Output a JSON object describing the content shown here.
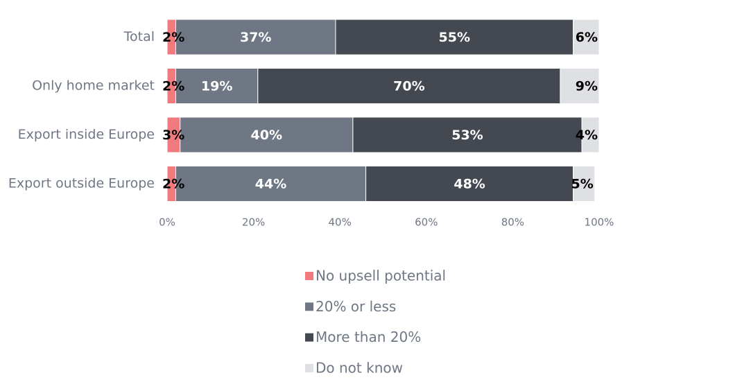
{
  "chart_data": {
    "type": "bar",
    "orientation": "horizontal",
    "stacked": true,
    "percent": true,
    "categories": [
      "Total",
      "Only home market",
      "Export inside Europe",
      "Export outside Europe"
    ],
    "series": [
      {
        "name": "No upsell potential",
        "color": "#f07a7e",
        "label_color": "#000000",
        "values": [
          2,
          2,
          3,
          2
        ],
        "labels": [
          "2%",
          "2%",
          "3%",
          "2%"
        ]
      },
      {
        "name": "20% or less",
        "color": "#6f7785",
        "label_color": "#ffffff",
        "values": [
          37,
          19,
          40,
          44
        ],
        "labels": [
          "37%",
          "19%",
          "40%",
          "44%"
        ]
      },
      {
        "name": "More than 20%",
        "color": "#434851",
        "label_color": "#ffffff",
        "values": [
          55,
          70,
          53,
          48
        ],
        "labels": [
          "55%",
          "70%",
          "53%",
          "48%"
        ]
      },
      {
        "name": "Do not know",
        "color": "#dfe0e3",
        "label_color": "#000000",
        "values": [
          6,
          9,
          4,
          5
        ],
        "labels": [
          "6%",
          "9%",
          "4%",
          "5%"
        ]
      }
    ],
    "xlim": [
      0,
      100
    ],
    "x_ticks": [
      "0%",
      "20%",
      "40%",
      "60%",
      "80%",
      "100%"
    ],
    "grid": false,
    "legend_position": "bottom"
  }
}
